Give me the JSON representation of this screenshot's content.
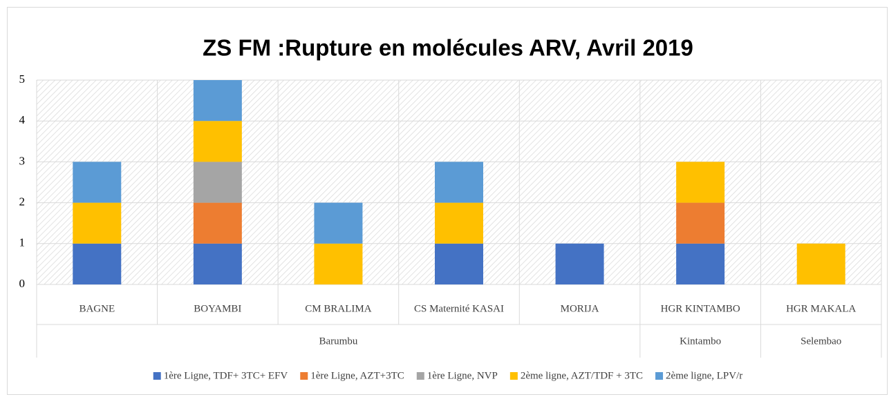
{
  "chart_data": {
    "type": "stacked_bar",
    "title": "ZS FM :Rupture en molécules ARV, Avril 2019",
    "categories": [
      "BAGNE",
      "BOYAMBI",
      "CM BRALIMA",
      "CS Maternité KASAI",
      "MORIJA",
      "HGR KINTAMBO",
      "HGR MAKALA"
    ],
    "groups": [
      {
        "name": "Barumbu",
        "span": 5
      },
      {
        "name": "Kintambo",
        "span": 1
      },
      {
        "name": "Selembao",
        "span": 1
      }
    ],
    "series": [
      {
        "name": "1ère Ligne, TDF+ 3TC+ EFV",
        "color": "#4472c4",
        "values": [
          1,
          1,
          0,
          1,
          1,
          1,
          0
        ]
      },
      {
        "name": "1ère Ligne, AZT+3TC",
        "color": "#ed7d31",
        "values": [
          0,
          1,
          0,
          0,
          0,
          1,
          0
        ]
      },
      {
        "name": "1ère Ligne, NVP",
        "color": "#a5a5a5",
        "values": [
          0,
          1,
          0,
          0,
          0,
          0,
          0
        ]
      },
      {
        "name": "2ème ligne, AZT/TDF + 3TC",
        "color": "#ffc000",
        "values": [
          1,
          1,
          1,
          1,
          0,
          1,
          1
        ]
      },
      {
        "name": "2ème ligne, LPV/r",
        "color": "#5b9bd5",
        "values": [
          1,
          1,
          1,
          1,
          0,
          0,
          0
        ]
      }
    ],
    "ylim": [
      0,
      5
    ],
    "yticks": [
      0,
      1,
      2,
      3,
      4,
      5
    ],
    "grid": true,
    "legend": "bottom"
  }
}
